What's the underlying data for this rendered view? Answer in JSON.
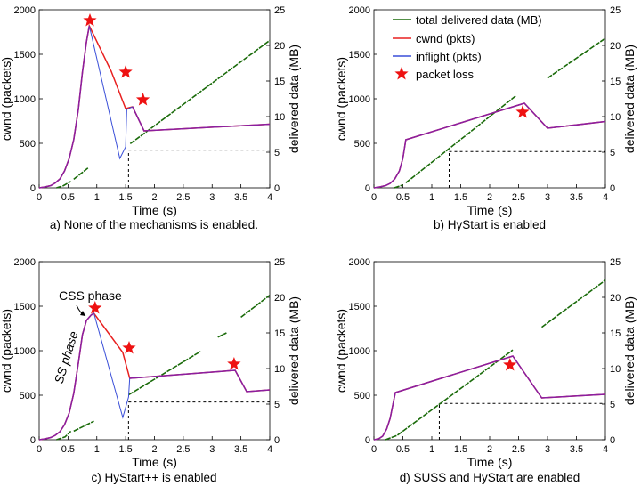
{
  "colors": {
    "total": "#1a6b0a",
    "cwnd": "#e82020",
    "inflight": "#3a4fd8",
    "overlap": "#8b1fa0",
    "star": "#ee1111"
  },
  "legend": [
    {
      "key": "total",
      "label": "total delivered data (MB)"
    },
    {
      "key": "cwnd",
      "label": "cwnd (pkts)"
    },
    {
      "key": "inflight",
      "label": "inflight (pkts)"
    },
    {
      "key": "star",
      "label": "packet loss"
    }
  ],
  "chart_data": [
    {
      "type": "line",
      "caption": "a) None of the mechanisms is enabled.",
      "xlabel": "Time (s)",
      "ylabel": "cwnd (packets)",
      "y2label": "delivered data (MB)",
      "xlim": [
        0,
        4
      ],
      "ylim": [
        0,
        2000
      ],
      "y2lim": [
        0,
        25
      ],
      "xticks": [
        "0",
        "0.5",
        "1",
        "1.5",
        "2",
        "2.5",
        "3",
        "3.5",
        "4"
      ],
      "yticks": [
        "0",
        "500",
        "1000",
        "1500",
        "2000"
      ],
      "y2ticks": [
        "0",
        "5",
        "10",
        "15",
        "20",
        "25"
      ],
      "cwnd": [
        [
          0,
          0
        ],
        [
          0.1,
          10
        ],
        [
          0.2,
          25
        ],
        [
          0.28,
          55
        ],
        [
          0.36,
          100
        ],
        [
          0.44,
          190
        ],
        [
          0.52,
          330
        ],
        [
          0.6,
          540
        ],
        [
          0.68,
          880
        ],
        [
          0.75,
          1300
        ],
        [
          0.82,
          1640
        ],
        [
          0.87,
          1820
        ],
        [
          1.25,
          1310
        ],
        [
          1.5,
          890
        ],
        [
          1.62,
          910
        ],
        [
          1.82,
          640
        ],
        [
          4,
          715
        ]
      ],
      "inflight": [
        [
          0,
          0
        ],
        [
          0.1,
          10
        ],
        [
          0.2,
          25
        ],
        [
          0.28,
          55
        ],
        [
          0.36,
          100
        ],
        [
          0.44,
          190
        ],
        [
          0.52,
          330
        ],
        [
          0.6,
          540
        ],
        [
          0.68,
          880
        ],
        [
          0.75,
          1300
        ],
        [
          0.82,
          1640
        ],
        [
          0.87,
          1820
        ],
        [
          1.4,
          330
        ],
        [
          1.5,
          460
        ],
        [
          1.52,
          880
        ],
        [
          1.62,
          910
        ],
        [
          1.82,
          640
        ],
        [
          4,
          715
        ]
      ],
      "delivered": [
        [
          [
            0.3,
            0
          ],
          [
            0.42,
            0.3
          ],
          [
            0.55,
            0.9
          ]
        ],
        [
          [
            0.6,
            1.2
          ],
          [
            0.85,
            2.8
          ]
        ],
        [
          [
            1.58,
            6.2
          ],
          [
            4,
            20.7
          ]
        ]
      ],
      "losses": [
        [
          0.88,
          1880
        ],
        [
          1.5,
          1300
        ],
        [
          1.8,
          990
        ]
      ],
      "marker": {
        "x": 1.55,
        "y2": 5.3
      }
    },
    {
      "type": "line",
      "caption": "b) HyStart is enabled",
      "xlabel": "Time (s)",
      "ylabel": "cwnd (packets)",
      "y2label": "delivered data (MB)",
      "xlim": [
        0,
        4
      ],
      "ylim": [
        0,
        2000
      ],
      "y2lim": [
        0,
        25
      ],
      "xticks": [
        "0",
        "0.5",
        "1",
        "1.5",
        "2",
        "2.5",
        "3",
        "3.5",
        "4"
      ],
      "yticks": [
        "0",
        "500",
        "1000",
        "1500",
        "2000"
      ],
      "y2ticks": [
        "0",
        "5",
        "10",
        "15",
        "20",
        "25"
      ],
      "cwnd": [
        [
          0,
          0
        ],
        [
          0.1,
          10
        ],
        [
          0.2,
          25
        ],
        [
          0.28,
          50
        ],
        [
          0.36,
          100
        ],
        [
          0.44,
          190
        ],
        [
          0.5,
          330
        ],
        [
          0.55,
          540
        ],
        [
          2.6,
          950
        ],
        [
          3,
          670
        ],
        [
          4,
          745
        ]
      ],
      "inflight": [
        [
          0,
          0
        ],
        [
          0.1,
          10
        ],
        [
          0.2,
          25
        ],
        [
          0.28,
          50
        ],
        [
          0.36,
          100
        ],
        [
          0.44,
          190
        ],
        [
          0.5,
          330
        ],
        [
          0.55,
          540
        ],
        [
          2.6,
          950
        ],
        [
          3,
          670
        ],
        [
          4,
          745
        ]
      ],
      "delivered": [
        [
          [
            0.35,
            0
          ],
          [
            0.5,
            0.4
          ]
        ],
        [
          [
            0.55,
            0.7
          ],
          [
            2.45,
            12.9
          ]
        ],
        [
          [
            3,
            15.4
          ],
          [
            4,
            21
          ]
        ]
      ],
      "losses": [
        [
          2.57,
          850
        ]
      ],
      "marker": {
        "x": 1.3,
        "y2": 5.1
      }
    },
    {
      "type": "line",
      "caption": "c) HyStart++ is enabled",
      "xlabel": "Time (s)",
      "ylabel": "cwnd (packets)",
      "y2label": "delivered data (MB)",
      "xlim": [
        0,
        4
      ],
      "ylim": [
        0,
        2000
      ],
      "y2lim": [
        0,
        25
      ],
      "xticks": [
        "0",
        "0.5",
        "1",
        "1.5",
        "2",
        "2.5",
        "3",
        "3.5",
        "4"
      ],
      "yticks": [
        "0",
        "500",
        "1000",
        "1500",
        "2000"
      ],
      "y2ticks": [
        "0",
        "5",
        "10",
        "15",
        "20",
        "25"
      ],
      "cwnd": [
        [
          0,
          0
        ],
        [
          0.1,
          10
        ],
        [
          0.2,
          25
        ],
        [
          0.28,
          50
        ],
        [
          0.36,
          90
        ],
        [
          0.44,
          170
        ],
        [
          0.52,
          300
        ],
        [
          0.6,
          520
        ],
        [
          0.68,
          860
        ],
        [
          0.75,
          1180
        ],
        [
          0.82,
          1340
        ],
        [
          0.9,
          1400
        ],
        [
          0.95,
          1420
        ],
        [
          1.45,
          980
        ],
        [
          1.57,
          690
        ],
        [
          3.4,
          780
        ],
        [
          3.6,
          540
        ],
        [
          4,
          560
        ]
      ],
      "inflight": [
        [
          0,
          0
        ],
        [
          0.1,
          10
        ],
        [
          0.2,
          25
        ],
        [
          0.28,
          50
        ],
        [
          0.36,
          90
        ],
        [
          0.44,
          170
        ],
        [
          0.52,
          300
        ],
        [
          0.6,
          520
        ],
        [
          0.68,
          860
        ],
        [
          0.75,
          1180
        ],
        [
          0.82,
          1340
        ],
        [
          0.9,
          1400
        ],
        [
          0.95,
          1420
        ],
        [
          1.45,
          250
        ],
        [
          1.55,
          480
        ],
        [
          1.57,
          690
        ],
        [
          3.4,
          780
        ],
        [
          3.6,
          540
        ],
        [
          4,
          560
        ]
      ],
      "delivered": [
        [
          [
            0.3,
            0
          ],
          [
            0.45,
            0.4
          ],
          [
            0.55,
            1.2
          ]
        ],
        [
          [
            0.6,
            1.2
          ],
          [
            0.95,
            2.6
          ]
        ],
        [
          [
            1.55,
            6.3
          ],
          [
            2.8,
            12.4
          ]
        ],
        [
          [
            3.1,
            14.4
          ],
          [
            3.25,
            15
          ]
        ],
        [
          [
            3.5,
            17.2
          ],
          [
            4,
            20.3
          ]
        ]
      ],
      "losses": [
        [
          0.97,
          1480
        ],
        [
          1.56,
          1030
        ],
        [
          3.38,
          850
        ]
      ],
      "marker": {
        "x": 1.55,
        "y2": 5.3
      }
    },
    {
      "type": "line",
      "caption": "d) SUSS and HyStart are enabled",
      "xlabel": "Time (s)",
      "ylabel": "cwnd (packets)",
      "y2label": "delivered data (MB)",
      "xlim": [
        0,
        4
      ],
      "ylim": [
        0,
        2000
      ],
      "y2lim": [
        0,
        25
      ],
      "xticks": [
        "0",
        "0.5",
        "1",
        "1.5",
        "2",
        "2.5",
        "3",
        "3.5",
        "4"
      ],
      "yticks": [
        "0",
        "500",
        "1000",
        "1500",
        "2000"
      ],
      "y2ticks": [
        "0",
        "5",
        "10",
        "15",
        "20",
        "25"
      ],
      "cwnd": [
        [
          0,
          0
        ],
        [
          0.08,
          10
        ],
        [
          0.15,
          40
        ],
        [
          0.22,
          120
        ],
        [
          0.28,
          240
        ],
        [
          0.33,
          400
        ],
        [
          0.37,
          530
        ],
        [
          2.4,
          940
        ],
        [
          2.9,
          470
        ],
        [
          4,
          510
        ]
      ],
      "inflight": [
        [
          0,
          0
        ],
        [
          0.08,
          10
        ],
        [
          0.15,
          40
        ],
        [
          0.22,
          120
        ],
        [
          0.28,
          240
        ],
        [
          0.33,
          400
        ],
        [
          0.37,
          530
        ],
        [
          2.4,
          940
        ],
        [
          2.9,
          470
        ],
        [
          4,
          510
        ]
      ],
      "delivered": [
        [
          [
            0.2,
            0
          ],
          [
            0.4,
            0.6
          ],
          [
            2.4,
            12.6
          ]
        ],
        [
          [
            2.9,
            15.8
          ],
          [
            4,
            22.4
          ]
        ]
      ],
      "losses": [
        [
          2.35,
          840
        ]
      ],
      "marker": {
        "x": 1.13,
        "y2": 5.1
      }
    }
  ],
  "annotations": {
    "css_phase": "CSS phase",
    "ss_phase": "SS phase"
  }
}
